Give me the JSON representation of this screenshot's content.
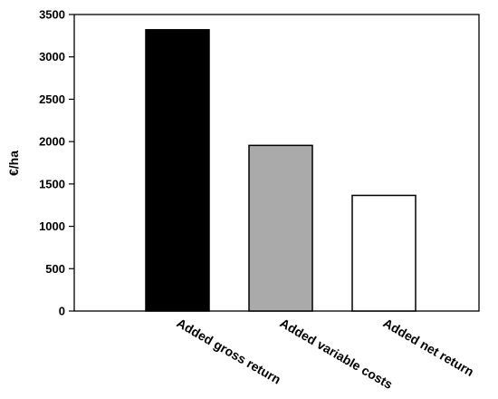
{
  "chart_data": {
    "type": "bar",
    "title": "",
    "xlabel": "",
    "ylabel": "€/ha",
    "ylim": [
      0,
      3500
    ],
    "yticks": [
      0,
      500,
      1000,
      1500,
      2000,
      2500,
      3000,
      3500
    ],
    "grid": false,
    "categories": [
      "Added gross return",
      "Added variable costs",
      "Added net return"
    ],
    "values": [
      3320,
      1955,
      1365
    ],
    "bar_colors": [
      "#000000",
      "#aaaaaa",
      "#ffffff"
    ]
  }
}
